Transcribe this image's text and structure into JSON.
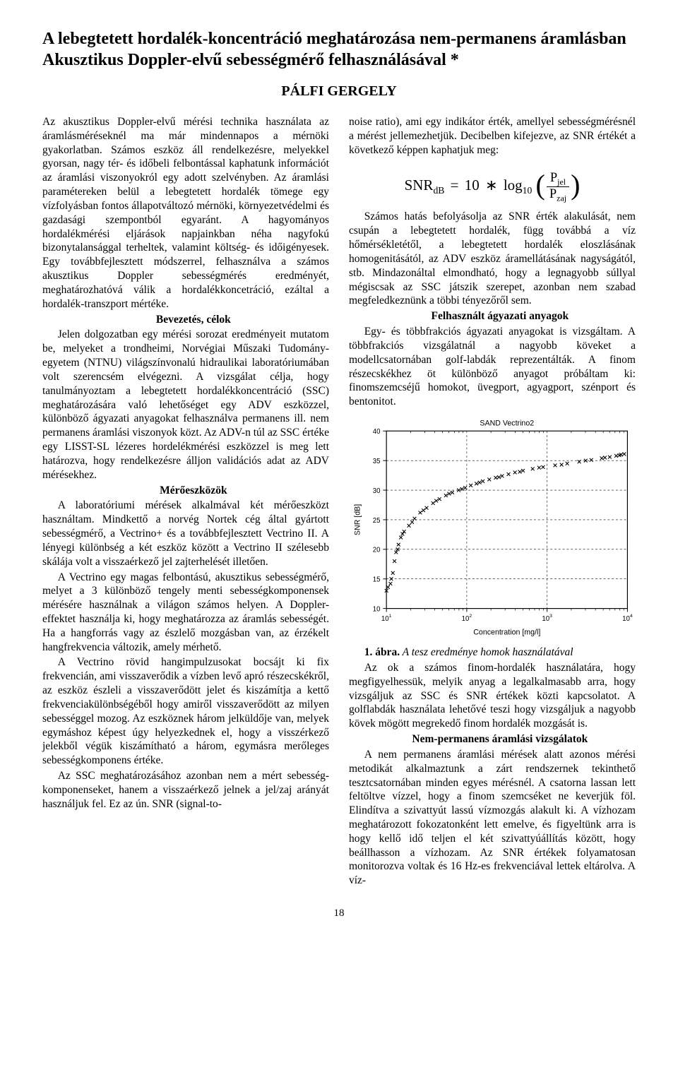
{
  "title": "A lebegtetett hordalék-koncentráció meghatározása nem-permanens áramlásban Akusztikus Doppler-elvű sebességmérő felhasználásával *",
  "author": "PÁLFI GERGELY",
  "page_number": "18",
  "left": {
    "intro": "Az akusztikus Doppler-elvű mérési technika használata az áramlásméréseknél ma már mindennapos a mérnöki gyakorlatban. Számos eszköz áll rendelkezésre, melyekkel gyorsan, nagy tér- és időbeli felbontással kaphatunk információt az áramlási viszonyokról egy adott szelvényben. Az áramlási paramétereken belül a lebegtetett hordalék tömege egy vízfolyásban fontos állapotváltozó mérnöki, környezetvédelmi és gazdasági szempontból egyaránt. A hagyományos hordalékmérési eljárások napjainkban néha nagyfokú bizonytalansággal terheltek, valamint költség- és időigényesek. Egy továbbfejlesztett módszerrel, felhasználva a számos akusztikus Doppler sebességmérés eredményét, meghatározhatóvá válik a hordalékkoncetráció, ezáltal a hordalék-transzport mértéke.",
    "sec1_head": "Bevezetés, célok",
    "sec1_body": "Jelen dolgozatban egy mérési sorozat eredményeit mutatom be, melyeket a trondheimi, Norvégiai Műszaki Tudomány-egyetem (NTNU) világszínvonalú hidraulikai laboratóriumában volt szerencsém elvégezni. A vizsgálat célja, hogy tanulmányoztam a lebegtetett hordalékkoncentráció (SSC) meghatározására való lehetőséget egy ADV eszközzel, különböző ágyazati anyagokat felhasználva permanens ill. nem permanens áramlási viszonyok közt. Az ADV-n túl az SSC értéke egy LISST-SL lézeres hordelékmérési eszközzel is meg lett határozva, hogy rendelkezésre álljon validációs adat az ADV mérésekhez.",
    "sec2_head": "Mérőeszközök",
    "sec2_p1": "A laboratóriumi mérések alkalmával két mérőeszközt használtam. Mindkettő a norvég Nortek cég által gyártott sebességmérő, a Vectrino+ és a továbbfejlesztett Vectrino II. A lényegi különbség a két eszköz között a Vectrino II szélesebb skálája volt a visszaérkező jel zajterhelését illetően.",
    "sec2_p2": "A Vectrino egy magas felbontású, akusztikus sebességmérő, melyet a 3 különböző tengely menti sebességkomponensek mérésére használnak a világon számos helyen. A Doppler-effektet használja ki, hogy meghatározza az áramlás sebességét. Ha a hangforrás vagy az észlelő mozgásban van, az érzékelt hangfrekvencia változik, amely mérhető.",
    "sec2_p3": "A Vectrino rövid hangimpulzusokat bocsájt ki fix frekvencián, ami visszaverődik a vízben levő apró részecskékről, az eszköz észleli a visszaverődött jelet és kiszámítja a kettő frekvenciakülönbségéből hogy amiről visszaverődött az milyen sebességgel mozog. Az eszköznek három jelküldője van, melyek egymáshoz képest úgy helyezkednek el, hogy a visszérkező jelekből végük kiszámítható a három, egymásra merőleges sebességkomponens értéke.",
    "sec2_p4": "Az SSC meghatározásához azonban nem a mért sebesség-komponenseket, hanem a visszaérkező jelnek a jel/zaj arányát használjuk fel. Ez az ún. SNR (signal-to-"
  },
  "right": {
    "cont": "noise ratio), ami egy indikátor érték, amellyel sebességmérésnél a mérést jellemezhetjük. Decibelben kifejezve, az SNR értékét a következő képpen kaphatjuk meg:",
    "formula": {
      "lhs_var": "SNR",
      "lhs_sub": "dB",
      "eq": "=",
      "ten": "10",
      "star": "∗",
      "log": "log",
      "log_sub": "10",
      "num_var": "P",
      "num_sub": "jel",
      "den_var": "P",
      "den_sub": "zaj"
    },
    "p_after_formula": "Számos hatás befolyásolja az SNR érték alakulását, nem csupán a lebegtetett hordalék, függ továbbá a víz hőmérsékletétől, a lebegtetett hordalék eloszlásának homogenitásától, az ADV eszköz áramellátásának nagyságától, stb. Mindazonáltal elmondható, hogy a legnagyobb súllyal mégiscsak az SSC játszik szerepet, azonban nem szabad megfeledkeznünk a többi tényezőről sem.",
    "sec3_head": "Felhasznált ágyazati anyagok",
    "sec3_body": "Egy- és többfrakciós ágyazati anyagokat is vizsgáltam. A többfrakciós vizsgálatnál a nagyobb köveket a modellcsatornában golf-labdák reprezentálták. A finom részecskékhez öt különböző anyagot próbáltam ki: finomszemcséjű homokot, üvegport, agyagport, szénport és bentonitot.",
    "fig1_num": "1. ábra.",
    "fig1_title": " A tesz eredménye homok használatával",
    "fig1_body": "Az ok a számos finom-hordalék használatára, hogy megfigyelhessük, melyik anyag a legalkalmasabb arra, hogy vizsgáljuk az SSC és SNR értékek közti kapcsolatot. A golflabdák használata lehetővé teszi hogy vizsgáljuk a nagyobb kövek mögött megrekedő finom hordalék mozgását is.",
    "sec4_head": "Nem-permanens áramlási vizsgálatok",
    "sec4_body": "A nem permanens áramlási mérések alatt azonos mérési metodikát alkalmaztunk a zárt rendszernek tekinthető tesztcsatornában minden egyes mérésnél. A csatorna lassan lett feltöltve vízzel, hogy a finom szemcséket ne keverjük föl. Elindítva a szivattyút lassú vízmozgás alakult ki. A vízhozam meghatározott fokozatonként lett emelve, és figyeltünk arra is hogy kellő idő teljen el két szivattyúállítás között, hogy beállhasson a vízhozam. Az SNR értékek folyamatosan monitorozva voltak és 16 Hz-es frekvenciával lettek eltárolva. A víz-"
  },
  "chart": {
    "title": "SAND Vectrino2",
    "title_fontsize": 11,
    "xlabel": "Concentration [mg/l]",
    "ylabel": "SNR [dB]",
    "label_fontsize": 11,
    "tick_fontsize": 10,
    "xlim": [
      10,
      10000
    ],
    "ylim": [
      10,
      40
    ],
    "xscale": "log",
    "yticks": [
      10,
      15,
      20,
      25,
      30,
      35,
      40
    ],
    "xtick_exponents": [
      1,
      2,
      3,
      4
    ],
    "background_color": "#ffffff",
    "axis_color": "#000000",
    "grid_color": "#000000",
    "minor_grid_color": "#aaaaaa",
    "grid_dash": "3,3",
    "marker": "x",
    "marker_size": 5,
    "marker_color": "#000000",
    "points_logx_y": [
      [
        1.0,
        13.0
      ],
      [
        1.05,
        14.2
      ],
      [
        1.08,
        16.0
      ],
      [
        1.1,
        18.0
      ],
      [
        1.12,
        19.5
      ],
      [
        1.15,
        20.8
      ],
      [
        1.18,
        22.0
      ],
      [
        1.22,
        23.0
      ],
      [
        1.28,
        24.0
      ],
      [
        1.35,
        25.2
      ],
      [
        1.42,
        26.2
      ],
      [
        1.5,
        27.0
      ],
      [
        1.58,
        27.8
      ],
      [
        1.66,
        28.5
      ],
      [
        1.74,
        29.1
      ],
      [
        1.82,
        29.6
      ],
      [
        1.9,
        30.0
      ],
      [
        1.98,
        30.4
      ],
      [
        2.05,
        30.8
      ],
      [
        2.12,
        31.1
      ],
      [
        2.2,
        31.5
      ],
      [
        2.28,
        31.8
      ],
      [
        2.36,
        32.1
      ],
      [
        2.44,
        32.4
      ],
      [
        2.52,
        32.7
      ],
      [
        2.6,
        33.0
      ],
      [
        2.7,
        33.3
      ],
      [
        2.82,
        33.6
      ],
      [
        2.95,
        33.9
      ],
      [
        3.1,
        34.2
      ],
      [
        3.25,
        34.5
      ],
      [
        3.4,
        34.8
      ],
      [
        3.55,
        35.1
      ],
      [
        3.68,
        35.4
      ],
      [
        3.78,
        35.6
      ],
      [
        3.86,
        35.8
      ],
      [
        3.92,
        36.0
      ],
      [
        3.96,
        36.1
      ],
      [
        1.02,
        13.6
      ],
      [
        1.06,
        15.0
      ],
      [
        1.14,
        20.0
      ],
      [
        1.2,
        22.6
      ],
      [
        1.32,
        24.6
      ],
      [
        1.46,
        26.6
      ],
      [
        1.62,
        28.2
      ],
      [
        1.78,
        29.4
      ],
      [
        1.94,
        30.2
      ],
      [
        2.16,
        31.3
      ],
      [
        2.4,
        32.2
      ],
      [
        2.66,
        33.1
      ],
      [
        2.9,
        33.8
      ],
      [
        3.18,
        34.3
      ],
      [
        3.48,
        35.0
      ],
      [
        3.72,
        35.5
      ],
      [
        3.9,
        35.9
      ]
    ]
  }
}
